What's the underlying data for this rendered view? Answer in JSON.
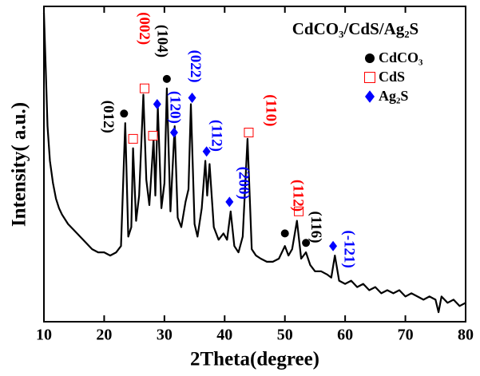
{
  "chart_data": {
    "type": "line",
    "title": "CdCO₃/CdS/Ag₂S",
    "x_label": "2Theta(degree)",
    "y_label": "Intensity( a.u.)",
    "xlim": [
      10,
      80
    ],
    "ylim": [
      0,
      100
    ],
    "xticks": [
      10,
      20,
      30,
      40,
      50,
      60,
      70,
      80
    ],
    "color": "#000000",
    "legend": "upper right",
    "x": [
      10,
      10.3,
      10.6,
      11,
      11.5,
      12,
      12.5,
      13,
      14,
      15,
      16,
      17,
      18,
      19,
      20,
      21,
      22,
      22.8,
      23.5,
      24,
      24.5,
      24.8,
      25.3,
      25.8,
      26.5,
      27,
      27.5,
      28.2,
      28.5,
      28.9,
      29.5,
      30,
      30.4,
      31,
      31.7,
      32.2,
      32.8,
      33.5,
      34,
      34.4,
      35,
      35.5,
      36.2,
      36.8,
      37.1,
      37.5,
      38.2,
      39,
      39.8,
      40.4,
      41,
      41.6,
      42.3,
      43,
      43.8,
      44.5,
      45.2,
      46,
      47,
      48,
      49,
      50,
      50.6,
      51.2,
      52,
      52.7,
      53.5,
      54.2,
      55,
      56,
      57,
      57.7,
      58.3,
      59,
      60,
      61,
      62,
      63,
      64,
      65,
      66,
      67,
      68,
      69,
      70,
      71,
      72,
      73,
      74,
      75,
      75.5,
      76,
      77,
      78,
      79,
      80
    ],
    "values": [
      98,
      80,
      62,
      51,
      44,
      39,
      36,
      34,
      31,
      29,
      27,
      25,
      23,
      22,
      22,
      21,
      22,
      24,
      63,
      27,
      30,
      55,
      32,
      40,
      72,
      45,
      37,
      58,
      40,
      68,
      36,
      44,
      74,
      35,
      62,
      33,
      30,
      38,
      42,
      69,
      31,
      27,
      36,
      51,
      40,
      50,
      30,
      26,
      28,
      26,
      35,
      24,
      22,
      27,
      58,
      23,
      21,
      20,
      19,
      19,
      20,
      24,
      21,
      23,
      32,
      20,
      22,
      18,
      16,
      16,
      15,
      14,
      21,
      13,
      12,
      13,
      11,
      12,
      10,
      11,
      9,
      10,
      9,
      10,
      8,
      9,
      8,
      7,
      8,
      7,
      3,
      8,
      6,
      7,
      5,
      6
    ],
    "markers": [
      {
        "name": "CdCO₃",
        "symbol": "circle",
        "color": "#000000",
        "x": [
          23.3,
          30.4,
          50,
          53.5
        ],
        "y": [
          66,
          77,
          28,
          25
        ]
      },
      {
        "name": "CdS",
        "symbol": "square",
        "color": "#ff0000",
        "x": [
          24.8,
          26.7,
          28.1,
          44,
          52.3
        ],
        "y": [
          58,
          74,
          59,
          60,
          35
        ]
      },
      {
        "name": "Ag₂S",
        "symbol": "diamond",
        "color": "#0000ff",
        "x": [
          28.8,
          31.6,
          34.6,
          37,
          40.8,
          58
        ],
        "y": [
          69,
          60,
          71,
          54,
          38,
          24
        ]
      }
    ],
    "annotations": [
      {
        "text": "(012)",
        "x": 20.5,
        "y": 65,
        "color": "#000000"
      },
      {
        "text": "(002)",
        "x": 26.5,
        "y": 93,
        "color": "#ff0000"
      },
      {
        "text": "(104)",
        "x": 29.5,
        "y": 89,
        "color": "#000000"
      },
      {
        "text": "(120)",
        "x": 31.6,
        "y": 68,
        "color": "#0000ff"
      },
      {
        "text": "(022)",
        "x": 35,
        "y": 81,
        "color": "#0000ff"
      },
      {
        "text": "(112)",
        "x": 38.5,
        "y": 59,
        "color": "#0000ff"
      },
      {
        "text": "(200)",
        "x": 43,
        "y": 44,
        "color": "#0000ff"
      },
      {
        "text": "(110)",
        "x": 47.5,
        "y": 67,
        "color": "#ff0000"
      },
      {
        "text": "(112)",
        "x": 52,
        "y": 40,
        "color": "#ff0000"
      },
      {
        "text": "(116)",
        "x": 55,
        "y": 30,
        "color": "#000000"
      },
      {
        "text": "(-121)",
        "x": 60.5,
        "y": 23,
        "color": "#0000ff"
      }
    ]
  }
}
